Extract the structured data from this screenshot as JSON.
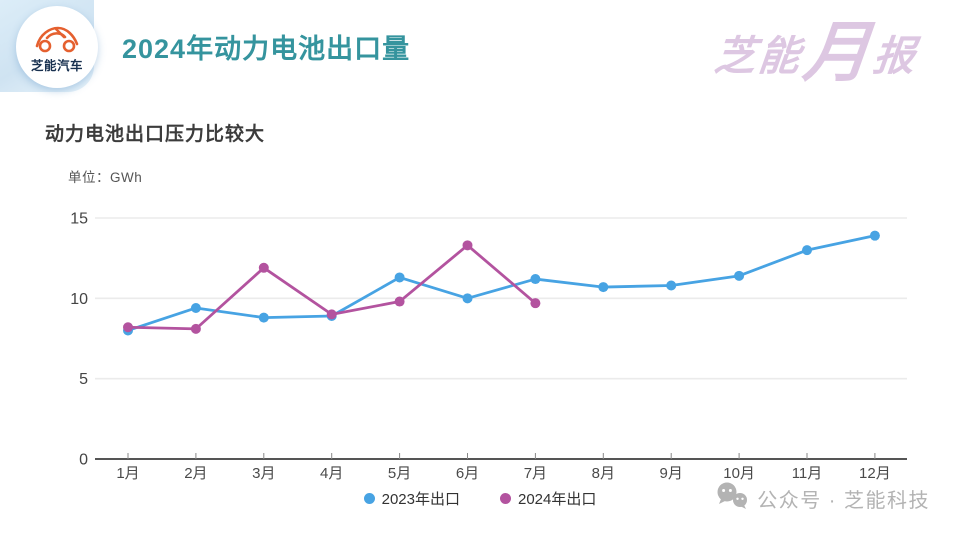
{
  "header": {
    "logo_badge_text": "芝能汽车",
    "title": "2024年动力电池出口量",
    "brand_mark": {
      "part1": "芝能",
      "part2": "月",
      "part3": "报"
    }
  },
  "subtitle": "动力电池出口压力比较大",
  "unit_label": "单位：GWh",
  "footer": {
    "wechat_label": "公众号 · 芝能科技"
  },
  "colors": {
    "title_teal": "#35949e",
    "brand_lavender": "#ddc7e2",
    "series_2023_blue": "#47a3e3",
    "series_2024_magenta": "#b3539f",
    "grid_gray": "#ebebeb",
    "axis_gray": "#555555",
    "footer_gray": "#b3b3b3"
  },
  "chart_data": {
    "type": "line",
    "categories": [
      "1月",
      "2月",
      "3月",
      "4月",
      "5月",
      "6月",
      "7月",
      "8月",
      "9月",
      "10月",
      "11月",
      "12月"
    ],
    "series": [
      {
        "name": "2023年出口",
        "color": "#47a3e3",
        "values": [
          8.0,
          9.4,
          8.8,
          8.9,
          11.3,
          10.0,
          11.2,
          10.7,
          10.8,
          11.4,
          13.0,
          13.9
        ]
      },
      {
        "name": "2024年出口",
        "color": "#b3539f",
        "values": [
          8.2,
          8.1,
          11.9,
          9.0,
          9.8,
          13.3,
          9.7
        ]
      }
    ],
    "title": "2024年动力电池出口量",
    "xlabel": "",
    "ylabel": "单位：GWh",
    "ylim": [
      0,
      15
    ],
    "yticks": [
      0,
      5,
      10,
      15
    ],
    "grid": true,
    "legend_position": "bottom"
  }
}
